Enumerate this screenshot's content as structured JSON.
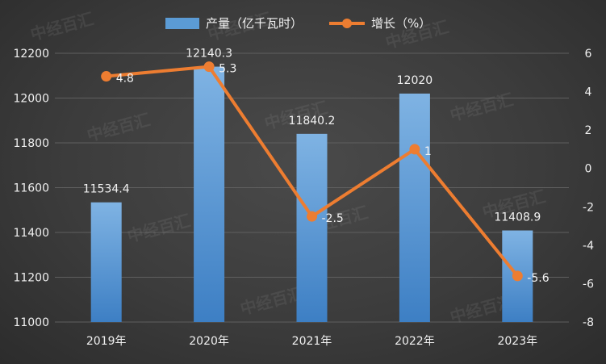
{
  "chart_data": {
    "type": "bar+line",
    "categories": [
      "2019年",
      "2020年",
      "2021年",
      "2022年",
      "2023年"
    ],
    "series": [
      {
        "name": "产量（亿千瓦时）",
        "type": "bar",
        "axis": "left",
        "values": [
          11534.4,
          12140.3,
          11840.2,
          12020,
          11408.9
        ],
        "labels": [
          "11534.4",
          "12140.3",
          "11840.2",
          "12020",
          "11408.9"
        ],
        "color": "#5b9bd5"
      },
      {
        "name": "增长（%）",
        "type": "line",
        "axis": "right",
        "values": [
          4.8,
          5.3,
          -2.5,
          1,
          -5.6
        ],
        "labels": [
          "4.8",
          "5.3",
          "-2.5",
          "1",
          "-5.6"
        ],
        "color": "#ed7d31"
      }
    ],
    "y_left": {
      "min": 11000,
      "max": 12200,
      "ticks": [
        "11000",
        "11200",
        "11400",
        "11600",
        "11800",
        "12000",
        "12200"
      ]
    },
    "y_right": {
      "min": -8,
      "max": 6,
      "ticks": [
        "-8",
        "-6",
        "-4",
        "-2",
        "0",
        "2",
        "4",
        "6"
      ]
    },
    "grid": true,
    "legend_position": "top-center"
  },
  "watermark": {
    "text": "中经百汇"
  }
}
